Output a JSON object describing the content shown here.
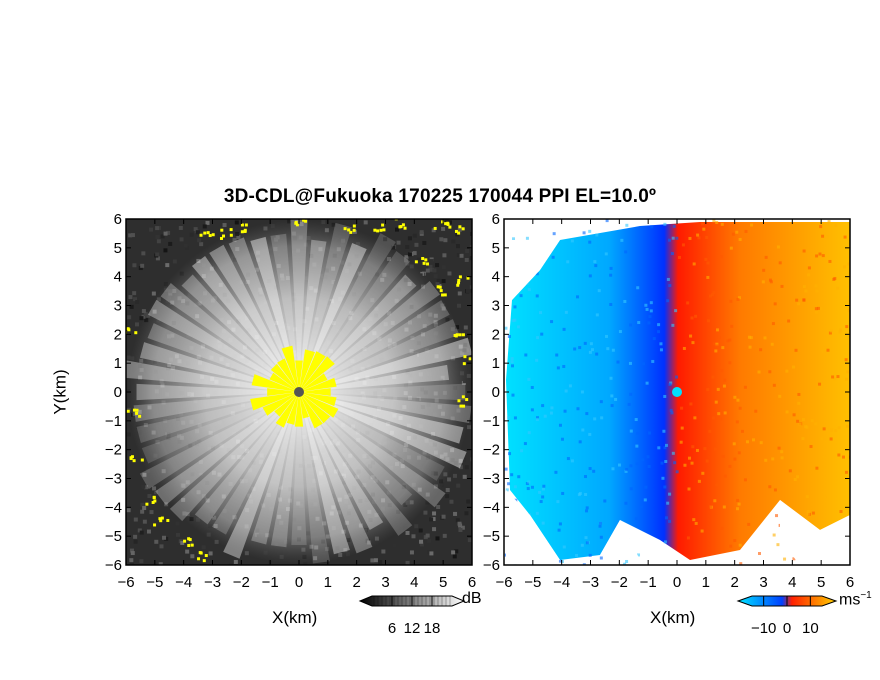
{
  "title": "3D-CDL@Fukuoka 170225 170044 PPI EL=10.0º",
  "chart_data": [
    {
      "type": "heatmap",
      "panel": "reflectivity",
      "xlabel": "X(km)",
      "ylabel": "Y(km)",
      "xlim": [
        -6,
        6
      ],
      "ylim": [
        -6,
        6
      ],
      "x_ticks": [
        "−6",
        "−5",
        "−4",
        "−3",
        "−2",
        "−1",
        "0",
        "1",
        "2",
        "3",
        "4",
        "5",
        "6"
      ],
      "y_ticks": [
        "−6",
        "−5",
        "−4",
        "−3",
        "−2",
        "−1",
        "0",
        "1",
        "2",
        "3",
        "4",
        "5",
        "6"
      ],
      "colorbar": {
        "unit": "dB",
        "ticks": [
          "6",
          "12",
          "18"
        ],
        "tick_values": [
          6,
          12,
          18
        ],
        "range": [
          0,
          24
        ],
        "colors": [
          "#000000",
          "#ffffff"
        ]
      },
      "highlight_color": "#ffff00",
      "center_marker_color": "#555555"
    },
    {
      "type": "heatmap",
      "panel": "doppler-velocity",
      "xlabel": "X(km)",
      "xlim": [
        -6,
        6
      ],
      "ylim": [
        -6,
        6
      ],
      "x_ticks": [
        "−6",
        "−5",
        "−4",
        "−3",
        "−2",
        "−1",
        "0",
        "1",
        "2",
        "3",
        "4",
        "5",
        "6"
      ],
      "y_ticks": [
        "−6",
        "−5",
        "−4",
        "−3",
        "−2",
        "−1",
        "0",
        "1",
        "2",
        "3",
        "4",
        "5",
        "6"
      ],
      "colorbar": {
        "unit": "ms",
        "unit_exponent": "−1",
        "ticks": [
          "−10",
          "0",
          "10"
        ],
        "tick_values": [
          -10,
          0,
          10
        ],
        "range": [
          -15,
          15
        ],
        "colors": [
          "#00e5ff",
          "#0040ff",
          "#ff2000",
          "#ffd000"
        ]
      },
      "center_marker_color": "#00e0ff"
    }
  ]
}
